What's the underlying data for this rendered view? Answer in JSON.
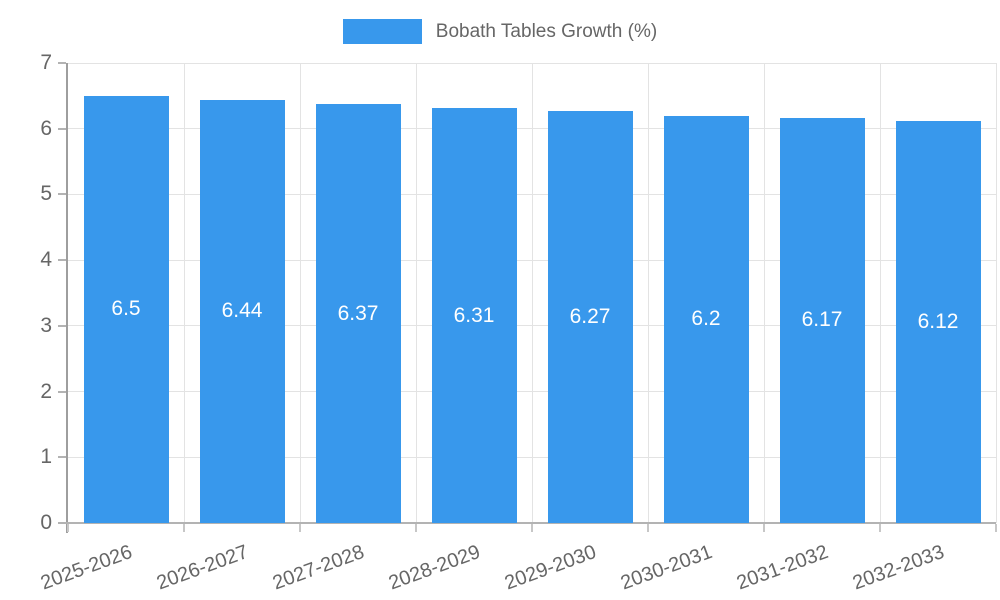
{
  "chart_data": {
    "type": "bar",
    "title": "Bobath Tables Growth (%)",
    "categories": [
      "2025-2026",
      "2026-2027",
      "2027-2028",
      "2028-2029",
      "2029-2030",
      "2030-2031",
      "2031-2032",
      "2032-2033"
    ],
    "values": [
      6.5,
      6.44,
      6.37,
      6.31,
      6.27,
      6.2,
      6.17,
      6.12
    ],
    "value_labels": [
      "6.5",
      "6.44",
      "6.37",
      "6.31",
      "6.27",
      "6.2",
      "6.17",
      "6.12"
    ],
    "xlabel": "",
    "ylabel": "",
    "ylim": [
      0,
      7
    ],
    "yticks": [
      "0",
      "1",
      "2",
      "3",
      "4",
      "5",
      "6",
      "7"
    ],
    "grid": true,
    "legend_position": "top-center",
    "bar_color": "#3898ec",
    "value_label_color": "#ffffff",
    "grid_color": "#e3e3e3",
    "axis_color": "#9e9e9e",
    "tick_label_color": "#666666"
  }
}
